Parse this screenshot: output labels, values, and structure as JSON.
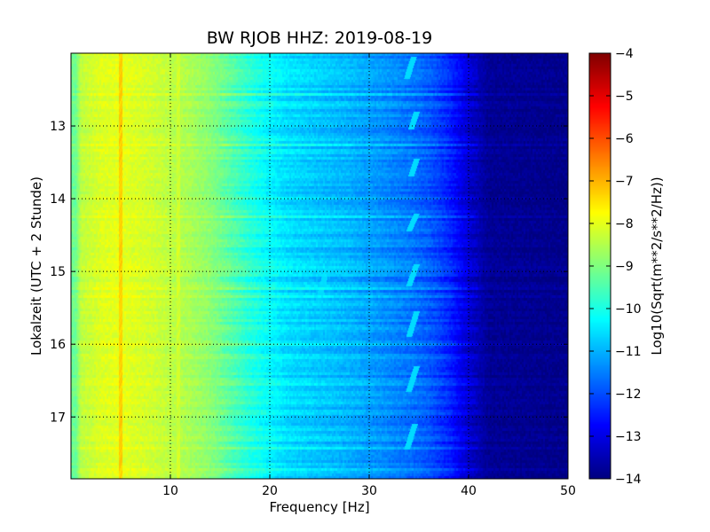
{
  "chart_data": {
    "type": "heatmap",
    "title": "BW RJOB HHZ: 2019-08-19",
    "xlabel": "Frequency [Hz]",
    "ylabel": "Lokalzeit (UTC + 2 Stunde)",
    "xlim": [
      0,
      50
    ],
    "ylim": [
      17.85,
      12.0
    ],
    "y_inverted": true,
    "xticks": [
      10,
      20,
      30,
      40,
      50
    ],
    "yticks": [
      13,
      14,
      15,
      16,
      17
    ],
    "grid": true,
    "colormap": "jet",
    "colorbar": {
      "label": "Log10(Sqrt(m**2/s**2/Hz))",
      "range": [
        -14,
        -4
      ],
      "ticks": [
        -4,
        -5,
        -6,
        -7,
        -8,
        -9,
        -10,
        -11,
        -12,
        -13,
        -14
      ]
    },
    "spectral_profile": [
      {
        "freq": 0.5,
        "value": -9.2
      },
      {
        "freq": 1,
        "value": -8.4
      },
      {
        "freq": 3,
        "value": -8.1
      },
      {
        "freq": 5,
        "value": -8.0
      },
      {
        "freq": 8,
        "value": -8.2
      },
      {
        "freq": 10,
        "value": -8.4
      },
      {
        "freq": 12,
        "value": -8.6
      },
      {
        "freq": 14,
        "value": -8.9
      },
      {
        "freq": 16,
        "value": -9.4
      },
      {
        "freq": 18,
        "value": -9.9
      },
      {
        "freq": 20,
        "value": -10.3
      },
      {
        "freq": 22,
        "value": -10.6
      },
      {
        "freq": 25,
        "value": -10.8
      },
      {
        "freq": 28,
        "value": -11.0
      },
      {
        "freq": 31,
        "value": -11.3
      },
      {
        "freq": 34,
        "value": -11.6
      },
      {
        "freq": 36,
        "value": -11.9
      },
      {
        "freq": 38,
        "value": -12.4
      },
      {
        "freq": 40,
        "value": -13.2
      },
      {
        "freq": 42,
        "value": -13.8
      },
      {
        "freq": 50,
        "value": -13.9
      }
    ],
    "spectral_lines": [
      {
        "freq": 5.0,
        "value": -7.3
      },
      {
        "freq": 10.8,
        "value": -8.2
      }
    ],
    "event_traces": [
      {
        "time_start": 12.05,
        "time_end": 12.35,
        "freq_start": 34.5,
        "freq_end": 33.8,
        "value": -10.6
      },
      {
        "time_start": 12.8,
        "time_end": 13.05,
        "freq_start": 34.8,
        "freq_end": 34.2,
        "value": -10.6
      },
      {
        "time_start": 13.45,
        "time_end": 13.7,
        "freq_start": 34.8,
        "freq_end": 34.2,
        "value": -10.6
      },
      {
        "time_start": 14.2,
        "time_end": 14.45,
        "freq_start": 34.8,
        "freq_end": 34.0,
        "value": -10.6
      },
      {
        "time_start": 14.9,
        "time_end": 15.2,
        "freq_start": 34.8,
        "freq_end": 34.0,
        "value": -10.6
      },
      {
        "time_start": 14.95,
        "time_end": 15.35,
        "freq_start": 25.8,
        "freq_end": 25.0,
        "value": -10.6
      },
      {
        "time_start": 15.55,
        "time_end": 15.9,
        "freq_start": 34.8,
        "freq_end": 34.0,
        "value": -10.6
      },
      {
        "time_start": 16.3,
        "time_end": 16.65,
        "freq_start": 34.8,
        "freq_end": 34.0,
        "value": -10.6
      },
      {
        "time_start": 17.1,
        "time_end": 17.45,
        "freq_start": 34.6,
        "freq_end": 33.8,
        "value": -10.6
      }
    ]
  }
}
